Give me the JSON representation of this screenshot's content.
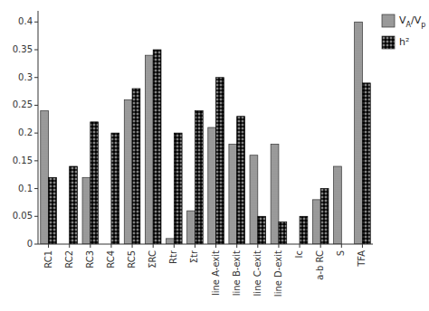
{
  "chart_data": {
    "type": "bar",
    "categories": [
      "RC1",
      "RC2",
      "RC3",
      "RC4",
      "RC5",
      "ΣRC",
      "Rtr",
      "Σtr",
      "line A-exit",
      "line B-exit",
      "line C-exit",
      "line D-exit",
      "Ic",
      "a-b RC",
      "S",
      "TFA"
    ],
    "series": [
      {
        "name": "VA/Vp",
        "color": "#ffffff",
        "values": [
          0.24,
          0.0,
          0.12,
          0.0,
          0.26,
          0.34,
          0.01,
          0.06,
          0.21,
          0.18,
          0.16,
          0.18,
          0.0,
          0.08,
          0.14,
          0.4
        ]
      },
      {
        "name": "h²",
        "color": "#000000",
        "values": [
          0.12,
          0.14,
          0.22,
          0.2,
          0.28,
          0.35,
          0.2,
          0.24,
          0.3,
          0.23,
          0.05,
          0.04,
          0.05,
          0.1,
          0.0,
          0.29
        ]
      }
    ],
    "ylim": [
      0,
      0.42
    ],
    "yticks": [
      0,
      0.05,
      0.1,
      0.15,
      0.2,
      0.25,
      0.3,
      0.35,
      0.4
    ],
    "grid": false,
    "legend": "upper right"
  }
}
